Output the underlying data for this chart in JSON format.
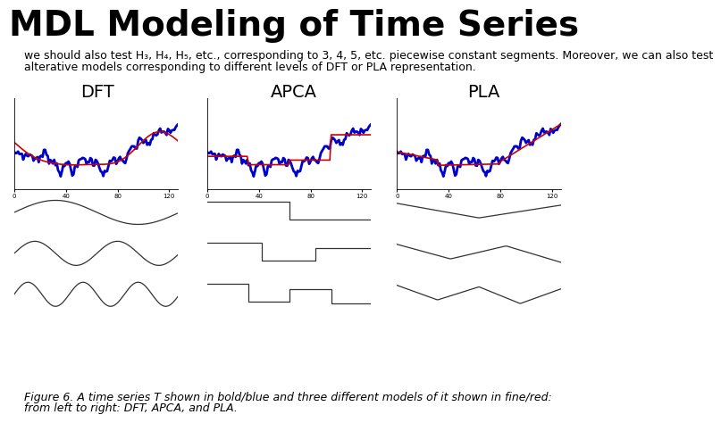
{
  "title": "MDL Modeling of Time Series",
  "subtitle_line1": "we should also test H₃, H₄, H₅, etc., corresponding to 3, 4, 5, etc. piecewise constant segments. Moreover, we can also test",
  "subtitle_line2": "alterative models corresponding to different levels of DFT or PLA representation.",
  "col_labels": [
    "DFT",
    "APCA",
    "PLA"
  ],
  "caption_line1": "Figure 6. A time series T shown in bold/blue and three different models of it shown in fine/red:",
  "caption_line2": "from left to right: DFT, APCA, and PLA.",
  "bg_color": "#ffffff",
  "title_fontsize": 28,
  "label_fontsize": 14,
  "body_fontsize": 9,
  "caption_fontsize": 9
}
